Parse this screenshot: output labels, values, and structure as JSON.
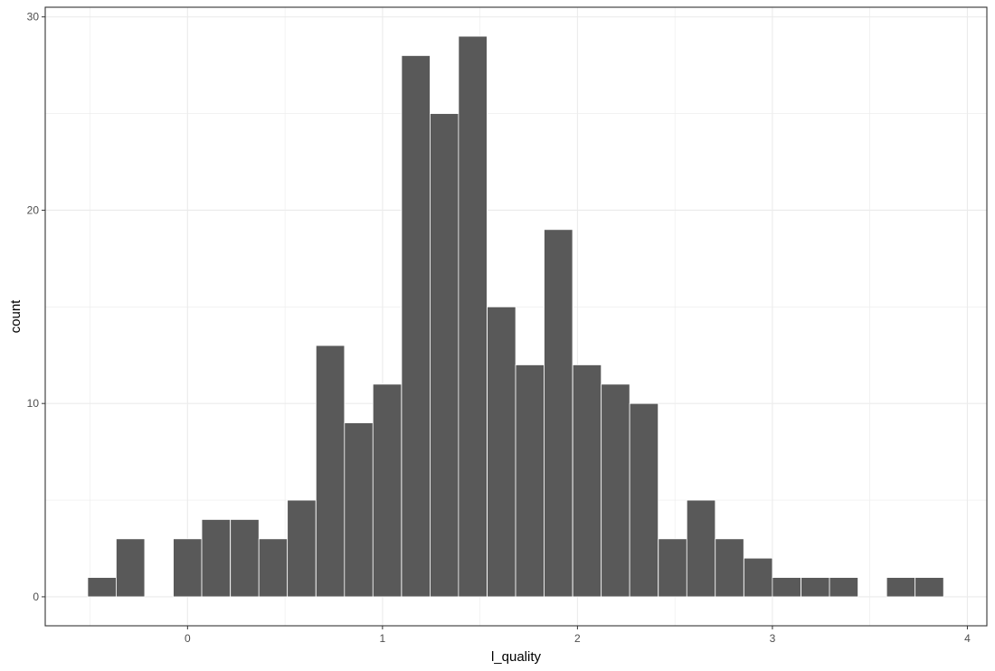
{
  "chart_data": {
    "type": "bar",
    "xlabel": "l_quality",
    "ylabel": "count",
    "xlim": [
      -0.73,
      4.1
    ],
    "ylim": [
      -1.5,
      30.5
    ],
    "x_ticks": [
      0,
      1,
      2,
      3,
      4
    ],
    "y_ticks": [
      0,
      10,
      20,
      30
    ],
    "grid": true,
    "bin_width": 0.1463,
    "bin_centers": [
      -0.439,
      -0.293,
      -0.146,
      0.0,
      0.146,
      0.293,
      0.439,
      0.585,
      0.732,
      0.878,
      1.024,
      1.171,
      1.317,
      1.463,
      1.61,
      1.756,
      1.902,
      2.049,
      2.195,
      2.341,
      2.488,
      2.634,
      2.78,
      2.927,
      3.073,
      3.22,
      3.366,
      3.512,
      3.659,
      3.805
    ],
    "values": [
      1,
      3,
      0,
      3,
      4,
      4,
      3,
      5,
      13,
      9,
      11,
      28,
      25,
      29,
      15,
      12,
      19,
      12,
      11,
      10,
      3,
      5,
      3,
      2,
      1,
      1,
      1,
      0,
      1,
      1
    ],
    "colors": {
      "bar_fill": "#595959",
      "bar_outline": "#ffffff",
      "grid": "#ebebeb",
      "panel_border": "#333333",
      "tick": "#333333"
    }
  }
}
